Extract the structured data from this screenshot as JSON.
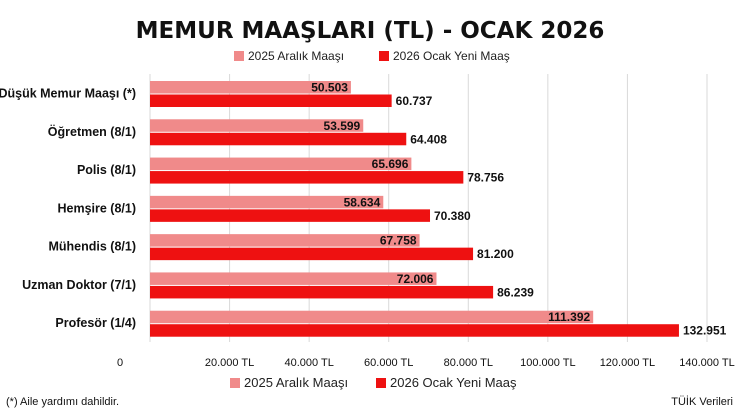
{
  "chart_data": {
    "type": "bar",
    "orientation": "horizontal",
    "title": "MEMUR MAAŞLARI (TL) - OCAK 2026",
    "categories": [
      "En Düşük Memur Maaşı (*)",
      "Öğretmen (8/1)",
      "Polis (8/1)",
      "Hemşire (8/1)",
      "Mühendis (8/1)",
      "Uzman Doktor (7/1)",
      "Profesör (1/4)"
    ],
    "series": [
      {
        "name": "2025 Aralık Maaşı",
        "color": "#f08a8a",
        "values": [
          50503,
          53599,
          65696,
          58634,
          67758,
          72006,
          111392
        ],
        "labels": [
          "50.503",
          "53.599",
          "65.696",
          "58.634",
          "67.758",
          "72.006",
          "111.392"
        ]
      },
      {
        "name": "2026 Ocak Yeni Maaş",
        "color": "#ee1111",
        "values": [
          60737,
          64408,
          78756,
          70380,
          81200,
          86239,
          132951
        ],
        "labels": [
          "60.737",
          "64.408",
          "78.756",
          "70.380",
          "81.200",
          "86.239",
          "132.951"
        ]
      }
    ],
    "xlim": [
      0,
      140000
    ],
    "xticks": [
      0,
      20000,
      40000,
      60000,
      80000,
      100000,
      120000,
      140000
    ],
    "xtick_labels": [
      "0",
      "20.000 TL",
      "40.000 TL",
      "60.000 TL",
      "80.000 TL",
      "100.000 TL",
      "120.000 TL",
      "140.000 TL"
    ],
    "grid": true,
    "legend_position": "top and bottom",
    "footnote": "(*) Aile yardımı dahildir.",
    "source": "TÜİK Verileri"
  }
}
